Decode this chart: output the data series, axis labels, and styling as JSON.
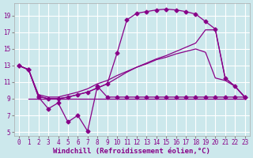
{
  "background_color": "#cce8ec",
  "grid_color": "#ffffff",
  "line_color": "#880088",
  "xlabel": "Windchill (Refroidissement éolien,°C)",
  "xlabel_fontsize": 6.5,
  "tick_fontsize": 5.5,
  "xlim": [
    -0.5,
    23.5
  ],
  "ylim": [
    4.5,
    20.5
  ],
  "yticks": [
    5,
    7,
    9,
    11,
    13,
    15,
    17,
    19
  ],
  "xticks": [
    0,
    1,
    2,
    3,
    4,
    5,
    6,
    7,
    8,
    9,
    10,
    11,
    12,
    13,
    14,
    15,
    16,
    17,
    18,
    19,
    20,
    21,
    22,
    23
  ],
  "line_zigzag_x": [
    0,
    1,
    2,
    3,
    4,
    5,
    6,
    7,
    8,
    9,
    10,
    11,
    12,
    13,
    14,
    15,
    16,
    17,
    18,
    19,
    20,
    21,
    22,
    23
  ],
  "line_zigzag_y": [
    13,
    12.5,
    9.2,
    7.8,
    8.5,
    6.2,
    7.0,
    5.1,
    10.5,
    9.2,
    9.2,
    9.2,
    9.2,
    9.2,
    9.2,
    9.2,
    9.2,
    9.2,
    9.2,
    9.2,
    9.2,
    9.2,
    9.2,
    9.2
  ],
  "line_flat_x": [
    1,
    2,
    3,
    4,
    5,
    6,
    7,
    8,
    9,
    10,
    11,
    12,
    13,
    14,
    15,
    16,
    17,
    18,
    19,
    20,
    21,
    22,
    23
  ],
  "line_flat_y": [
    9.0,
    9.0,
    9.0,
    9.0,
    9.0,
    9.0,
    9.0,
    9.0,
    9.0,
    9.0,
    9.0,
    9.0,
    9.0,
    9.0,
    9.0,
    9.0,
    9.0,
    9.0,
    9.0,
    9.0,
    9.0,
    9.0,
    9.0
  ],
  "line_diag1_x": [
    0,
    1,
    2,
    3,
    4,
    5,
    6,
    7,
    8,
    9,
    10,
    11,
    12,
    13,
    14,
    15,
    16,
    17,
    18,
    19,
    20,
    21,
    22,
    23
  ],
  "line_diag1_y": [
    13.0,
    12.5,
    9.5,
    9.2,
    9.2,
    9.5,
    9.8,
    10.2,
    10.8,
    11.2,
    11.8,
    12.3,
    12.8,
    13.2,
    13.7,
    14.0,
    14.4,
    14.7,
    15.0,
    14.6,
    11.5,
    11.2,
    10.5,
    9.2
  ],
  "line_diag2_x": [
    0,
    1,
    2,
    3,
    4,
    5,
    6,
    7,
    8,
    9,
    10,
    11,
    12,
    13,
    14,
    15,
    16,
    17,
    18,
    19,
    20,
    21,
    22,
    23
  ],
  "line_diag2_y": [
    13.0,
    12.5,
    9.3,
    9.0,
    9.0,
    9.2,
    9.5,
    9.8,
    10.3,
    10.8,
    11.5,
    12.2,
    12.8,
    13.3,
    13.8,
    14.2,
    14.7,
    15.2,
    15.7,
    17.3,
    17.3,
    11.5,
    10.5,
    9.2
  ],
  "line_peak_x": [
    0,
    1,
    2,
    3,
    4,
    5,
    6,
    7,
    8,
    9,
    10,
    11,
    12,
    13,
    14,
    15,
    16,
    17,
    18,
    19,
    20,
    21,
    22,
    23
  ],
  "line_peak_y": [
    13,
    12.5,
    9.3,
    9.0,
    9.0,
    9.2,
    9.5,
    9.8,
    10.3,
    10.8,
    14.5,
    18.5,
    19.3,
    19.5,
    19.7,
    19.8,
    19.7,
    19.5,
    19.2,
    18.3,
    17.4,
    11.5,
    10.5,
    9.2
  ]
}
